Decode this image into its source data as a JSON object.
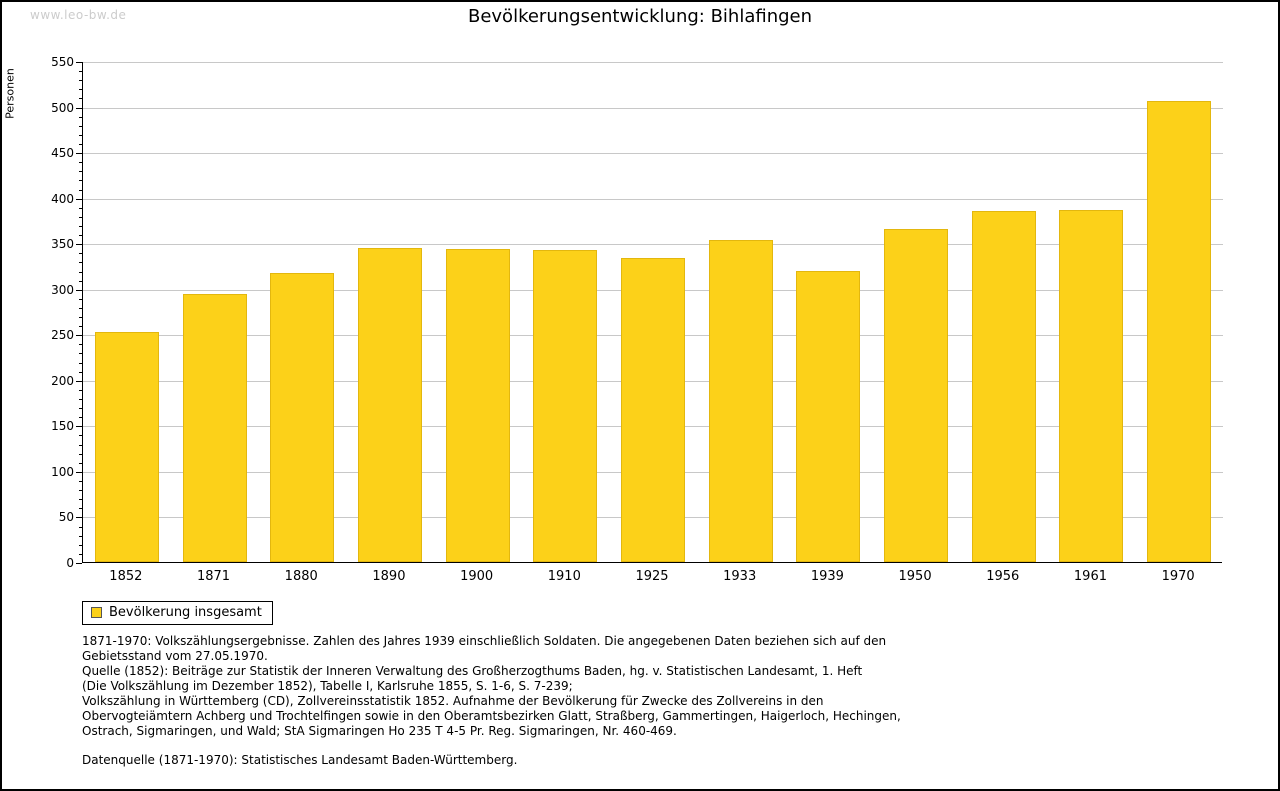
{
  "watermark": "www.leo-bw.de",
  "title": "Bevölkerungsentwicklung: Bihlafingen",
  "chart_data": {
    "type": "bar",
    "title": "Bevölkerungsentwicklung: Bihlafingen",
    "xlabel": "",
    "ylabel": "Personen",
    "categories": [
      "1852",
      "1871",
      "1880",
      "1890",
      "1900",
      "1910",
      "1925",
      "1933",
      "1939",
      "1950",
      "1956",
      "1961",
      "1970"
    ],
    "values": [
      253,
      294,
      317,
      345,
      344,
      342,
      334,
      353,
      319,
      366,
      385,
      386,
      506
    ],
    "ylim": [
      0,
      550
    ],
    "ytick_interval": 50,
    "ytick_minor_interval": 10,
    "grid": true,
    "legend_position": "bottom-left"
  },
  "legend": {
    "label": "Bevölkerung insgesamt"
  },
  "footnotes": {
    "lines": [
      "1871-1970: Volkszählungsergebnisse. Zahlen des Jahres 1939 einschließlich Soldaten. Die angegebenen Daten beziehen sich auf den",
      "Gebietsstand vom 27.05.1970.",
      "Quelle (1852): Beiträge zur Statistik der Inneren Verwaltung des Großherzogthums Baden, hg. v. Statistischen Landesamt, 1. Heft",
      "(Die Volkszählung im Dezember 1852), Tabelle I, Karlsruhe 1855, S. 1-6, S. 7-239;",
      "Volkszählung in Württemberg (CD), Zollvereinsstatistik 1852. Aufnahme der Bevölkerung für Zwecke des Zollvereins in den",
      "Obervogteiämtern Achberg und Trochtelfingen sowie in den Oberamtsbezirken Glatt, Straßberg, Gammertingen, Haigerloch, Hechingen,",
      "Ostrach, Sigmaringen, und Wald; StA Sigmaringen Ho 235 T 4-5 Pr. Reg. Sigmaringen, Nr. 460-469."
    ],
    "datasource": "Datenquelle (1871-1970): Statistisches Landesamt Baden-Württemberg."
  },
  "colors": {
    "bar": "#FCD119",
    "grid": "#C8C8C8",
    "axis": "#000000",
    "watermark": "#CCCCCC"
  }
}
